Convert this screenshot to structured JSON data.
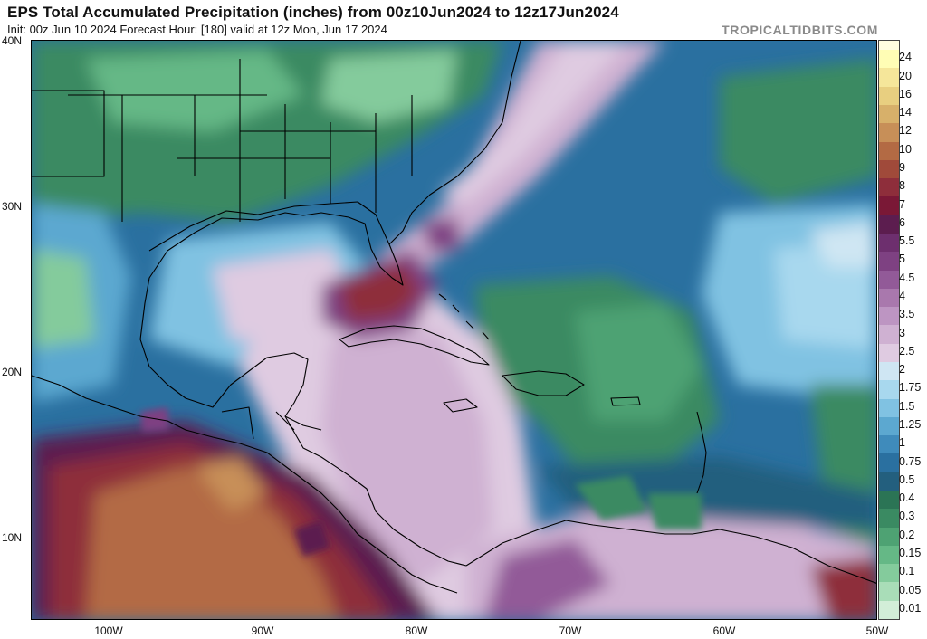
{
  "header": {
    "title": "EPS Total Accumulated Precipitation (inches) from 00z10Jun2024 to 12z17Jun2024",
    "subtitle": "Init: 00z Jun 10 2024   Forecast Hour: [180]   valid at 12z Mon, Jun 17 2024",
    "brand": "TROPICALTIDBITS.COM"
  },
  "axes": {
    "lat_labels": [
      "40N",
      "30N",
      "20N",
      "10N"
    ],
    "lon_labels": [
      "100W",
      "90W",
      "80W",
      "70W",
      "60W",
      "50W"
    ]
  },
  "legend": {
    "labels": [
      "24",
      "20",
      "16",
      "14",
      "12",
      "10",
      "9",
      "8",
      "7",
      "6",
      "5.5",
      "5",
      "4.5",
      "4",
      "3.5",
      "3",
      "2.5",
      "2",
      "1.75",
      "1.5",
      "1.25",
      "1",
      "0.75",
      "0.5",
      "0.4",
      "0.3",
      "0.2",
      "0.15",
      "0.1",
      "0.05",
      "0.01"
    ],
    "colors": [
      "#fffdb5",
      "#f5e69a",
      "#e8cf80",
      "#d7b06a",
      "#c78f58",
      "#b36a44",
      "#a04a3a",
      "#8e2e3b",
      "#7a1836",
      "#5c1d4f",
      "#6d2f6e",
      "#7e4182",
      "#925a98",
      "#a978ad",
      "#bd95c2",
      "#cfb1d2",
      "#dfcbe1",
      "#cfe6f3",
      "#a8d8ee",
      "#80c2e2",
      "#5ca8d0",
      "#3f8bbb",
      "#2a70a0",
      "#235f7e",
      "#2b7455",
      "#3a8a62",
      "#4ea273",
      "#65b886",
      "#84cb9c",
      "#a9ddb8",
      "#d2eed8"
    ]
  },
  "map": {
    "colors": {
      "land_border": "#000000",
      "ocean_deep": "#235f7e",
      "heavy": "#8e2e3b",
      "pink": "#dfcbe1",
      "green": "#3a8a62"
    }
  }
}
